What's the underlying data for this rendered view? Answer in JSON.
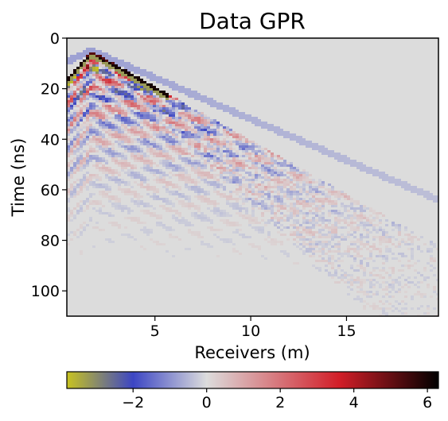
{
  "chart_data": {
    "type": "heatmap",
    "title": "Data GPR",
    "xlabel": "Receivers (m)",
    "ylabel": "Time (ns)",
    "xlim": [
      0.4,
      19.8
    ],
    "ylim": [
      110,
      0
    ],
    "xticks": [
      5,
      10,
      15
    ],
    "yticks": [
      0,
      20,
      40,
      60,
      80,
      100
    ],
    "colorbar": {
      "range": [
        -3.8,
        6.3
      ],
      "ticks": [
        -2,
        0,
        2,
        4,
        6
      ],
      "placement": "bottom",
      "colormap": [
        "#c8c320",
        "#3c46c4",
        "#dcdcdc",
        "#d21e28",
        "#000000"
      ]
    },
    "grid": false,
    "background_color": "#dcdcdc",
    "features": [
      {
        "name": "direct wave apex",
        "x": 1.7,
        "t": 5
      },
      {
        "name": "direct wave right edge",
        "x_start": 1.7,
        "t_start": 5,
        "x_end": 19.8,
        "t_end": 64
      },
      {
        "name": "scattered wavefield boundary",
        "x_start": 1.7,
        "t_start": 5,
        "x_end": 17,
        "t_end": 110
      }
    ]
  }
}
